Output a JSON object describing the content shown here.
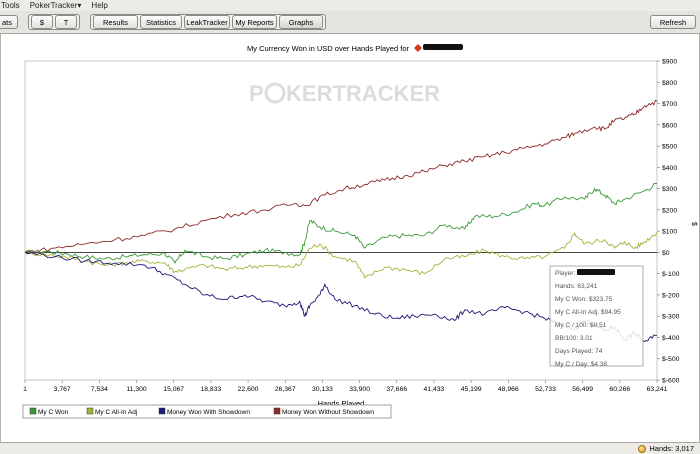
{
  "menubar": {
    "items": [
      "Tools",
      "PokerTracker▾",
      "Help"
    ]
  },
  "toolbar": {
    "stats_label": "ats",
    "dollar_label": "$",
    "t_label": "T",
    "tabs": [
      "Results",
      "Statistics",
      "LeakTracker",
      "My Reports",
      "Graphs"
    ],
    "refresh_label": "Refresh"
  },
  "chart": {
    "title": "My Currency Won in USD over Hands Played for",
    "watermark_a": "P",
    "watermark_b": "KERTRACKER",
    "x_axis_title": "Hands Played",
    "y_axis_title": "$"
  },
  "tooltip": {
    "player_label": "Player:",
    "lines": [
      "Hands: 63,241",
      "My C Won: $323.75",
      "My C All-In Adj: $94.95",
      "My C / 100: $0.51",
      "BB/100: 3.01",
      "Days Played: 74",
      "My C / Day: $4.38"
    ]
  },
  "legend": [
    {
      "name": "My C Won",
      "color": "#3a9a3a"
    },
    {
      "name": "My C All-In Adj",
      "color": "#a8b23a"
    },
    {
      "name": "Money Won With Showdown",
      "color": "#1e1a78"
    },
    {
      "name": "Money Won Without Showdown",
      "color": "#8c2a2a"
    }
  ],
  "status": {
    "hands_label": "Hands: 3,017"
  },
  "chart_data": {
    "type": "line",
    "title": "My Currency Won in USD over Hands Played for",
    "xlabel": "Hands Played",
    "ylabel": "$",
    "xlim": [
      1,
      63241
    ],
    "ylim": [
      -600,
      900
    ],
    "x_ticks": [
      "1",
      "3,767",
      "7,534",
      "11,300",
      "15,067",
      "18,833",
      "22,600",
      "26,367",
      "30,133",
      "33,900",
      "37,666",
      "41,433",
      "45,199",
      "48,966",
      "52,733",
      "56,499",
      "60,266",
      "63,241"
    ],
    "y_ticks": [
      "$-600",
      "$-500",
      "$-400",
      "$-300",
      "$-200",
      "$-100",
      "$0",
      "$100",
      "$200",
      "$300",
      "$400",
      "$500",
      "$600",
      "$700",
      "$800",
      "$900"
    ],
    "y_values": [
      -600,
      -500,
      -400,
      -300,
      -200,
      -100,
      0,
      100,
      200,
      300,
      400,
      500,
      600,
      700,
      800,
      900
    ],
    "grid": false,
    "legend_position": "bottom",
    "series": [
      {
        "name": "My C Won",
        "color": "#3a9a3a",
        "points": [
          [
            1,
            0
          ],
          [
            2000,
            5
          ],
          [
            4000,
            -5
          ],
          [
            6000,
            -20
          ],
          [
            8000,
            -30
          ],
          [
            10000,
            -20
          ],
          [
            12000,
            -10
          ],
          [
            14000,
            -5
          ],
          [
            15000,
            -50
          ],
          [
            16000,
            10
          ],
          [
            18000,
            -20
          ],
          [
            20000,
            -30
          ],
          [
            22000,
            -10
          ],
          [
            24000,
            10
          ],
          [
            26000,
            0
          ],
          [
            27500,
            -10
          ],
          [
            28000,
            50
          ],
          [
            28500,
            150
          ],
          [
            29500,
            120
          ],
          [
            31000,
            100
          ],
          [
            33000,
            80
          ],
          [
            34000,
            20
          ],
          [
            36000,
            70
          ],
          [
            38000,
            80
          ],
          [
            40000,
            80
          ],
          [
            42000,
            130
          ],
          [
            44000,
            110
          ],
          [
            45000,
            170
          ],
          [
            47000,
            170
          ],
          [
            49000,
            190
          ],
          [
            51000,
            230
          ],
          [
            52000,
            220
          ],
          [
            54000,
            260
          ],
          [
            56000,
            250
          ],
          [
            57000,
            300
          ],
          [
            58000,
            270
          ],
          [
            59000,
            230
          ],
          [
            60000,
            250
          ],
          [
            62000,
            290
          ],
          [
            63241,
            324
          ]
        ]
      },
      {
        "name": "My C All-In Adj",
        "color": "#a8b23a",
        "points": [
          [
            1,
            0
          ],
          [
            2000,
            -10
          ],
          [
            4000,
            -20
          ],
          [
            6000,
            -40
          ],
          [
            8000,
            -60
          ],
          [
            10000,
            -50
          ],
          [
            12000,
            -40
          ],
          [
            14000,
            -50
          ],
          [
            15000,
            -90
          ],
          [
            16000,
            -80
          ],
          [
            18000,
            -60
          ],
          [
            20000,
            -80
          ],
          [
            22000,
            -70
          ],
          [
            24000,
            -60
          ],
          [
            26000,
            -70
          ],
          [
            27500,
            -60
          ],
          [
            28500,
            20
          ],
          [
            29500,
            40
          ],
          [
            31000,
            -20
          ],
          [
            33000,
            -40
          ],
          [
            34000,
            -120
          ],
          [
            36000,
            -70
          ],
          [
            38000,
            -80
          ],
          [
            40000,
            -100
          ],
          [
            42000,
            -30
          ],
          [
            44000,
            -20
          ],
          [
            46000,
            10
          ],
          [
            48000,
            -20
          ],
          [
            50000,
            -30
          ],
          [
            52000,
            -20
          ],
          [
            54000,
            20
          ],
          [
            55000,
            90
          ],
          [
            56000,
            40
          ],
          [
            58000,
            60
          ],
          [
            59000,
            20
          ],
          [
            60000,
            50
          ],
          [
            61000,
            20
          ],
          [
            62000,
            50
          ],
          [
            63241,
            95
          ]
        ]
      },
      {
        "name": "Money Won With Showdown",
        "color": "#1e1a78",
        "points": [
          [
            1,
            0
          ],
          [
            3000,
            -20
          ],
          [
            6000,
            -40
          ],
          [
            9000,
            -50
          ],
          [
            12000,
            -60
          ],
          [
            14000,
            -100
          ],
          [
            16000,
            -150
          ],
          [
            18000,
            -200
          ],
          [
            20000,
            -220
          ],
          [
            22000,
            -200
          ],
          [
            24000,
            -230
          ],
          [
            26000,
            -250
          ],
          [
            27500,
            -230
          ],
          [
            28000,
            -300
          ],
          [
            28500,
            -250
          ],
          [
            29500,
            -200
          ],
          [
            30000,
            -150
          ],
          [
            31000,
            -220
          ],
          [
            33000,
            -250
          ],
          [
            35000,
            -290
          ],
          [
            37000,
            -310
          ],
          [
            39000,
            -300
          ],
          [
            41000,
            -290
          ],
          [
            43000,
            -320
          ],
          [
            44000,
            -270
          ],
          [
            46000,
            -290
          ],
          [
            48000,
            -260
          ],
          [
            50000,
            -280
          ],
          [
            52000,
            -310
          ],
          [
            53000,
            -330
          ],
          [
            55000,
            -360
          ],
          [
            56000,
            -320
          ],
          [
            57000,
            -340
          ],
          [
            58000,
            -370
          ],
          [
            59000,
            -350
          ],
          [
            60000,
            -410
          ],
          [
            61000,
            -380
          ],
          [
            62000,
            -420
          ],
          [
            63241,
            -390
          ]
        ]
      },
      {
        "name": "Money Won Without Showdown",
        "color": "#8c2a2a",
        "points": [
          [
            1,
            0
          ],
          [
            3000,
            20
          ],
          [
            6000,
            40
          ],
          [
            9000,
            60
          ],
          [
            12000,
            80
          ],
          [
            15000,
            110
          ],
          [
            18000,
            150
          ],
          [
            21000,
            180
          ],
          [
            24000,
            200
          ],
          [
            27000,
            230
          ],
          [
            28000,
            220
          ],
          [
            30000,
            270
          ],
          [
            32000,
            300
          ],
          [
            34000,
            320
          ],
          [
            36000,
            340
          ],
          [
            38000,
            360
          ],
          [
            40000,
            380
          ],
          [
            42000,
            410
          ],
          [
            44000,
            430
          ],
          [
            46000,
            450
          ],
          [
            48000,
            470
          ],
          [
            50000,
            490
          ],
          [
            52000,
            510
          ],
          [
            54000,
            540
          ],
          [
            55000,
            560
          ],
          [
            57000,
            590
          ],
          [
            58000,
            580
          ],
          [
            59000,
            620
          ],
          [
            60000,
            630
          ],
          [
            61000,
            650
          ],
          [
            62000,
            690
          ],
          [
            63241,
            710
          ]
        ]
      }
    ]
  }
}
